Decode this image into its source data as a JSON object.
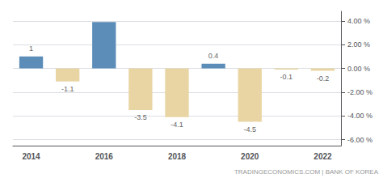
{
  "chart_data": {
    "type": "bar",
    "categories": [
      "2014",
      null,
      "2016",
      null,
      "2018",
      null,
      "2020",
      null,
      "2022"
    ],
    "values": [
      1.0,
      -1.1,
      3.9,
      -3.5,
      -4.1,
      0.4,
      -4.5,
      -0.1,
      -0.2
    ],
    "colors": [
      "#5b8db8",
      "#e8d5a3",
      "#5b8db8",
      "#e8d5a3",
      "#e8d5a3",
      "#5b8db8",
      "#e8d5a3",
      "#e8d5a3",
      "#e8d5a3"
    ],
    "data_labels": true,
    "value_labels": [
      "1",
      "-1.1",
      null,
      "-3.5",
      "-4.1",
      "0.4",
      "-4.5",
      "-0.1",
      "-0.2"
    ],
    "ylim": [
      -6.5,
      4.8
    ],
    "yticks": [
      {
        "value": -6.0,
        "label": "-6.00 %"
      },
      {
        "value": -4.0,
        "label": "-4.00 %"
      },
      {
        "value": -2.0,
        "label": "-2.00 %"
      },
      {
        "value": 0.0,
        "label": "0.00 %"
      },
      {
        "value": 2.0,
        "label": "2.00 %"
      },
      {
        "value": 4.0,
        "label": "4.00 %"
      }
    ],
    "grid": true,
    "annotations": [
      "TRADINGECONOMICS.COM | BANK OF KOREA"
    ]
  }
}
